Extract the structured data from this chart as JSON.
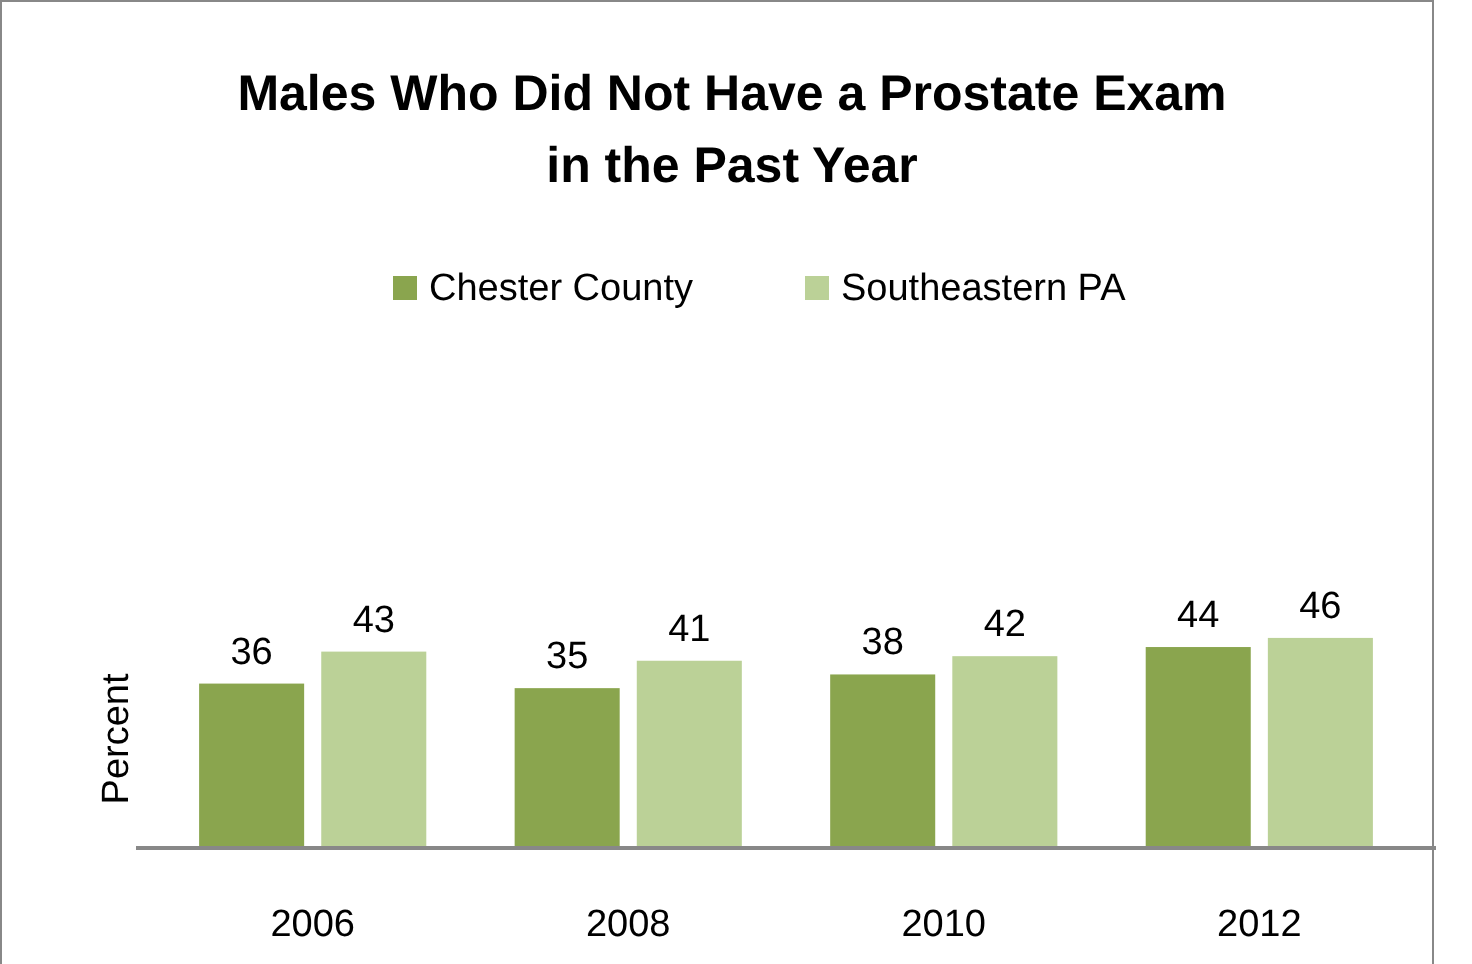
{
  "chart_data": {
    "type": "bar",
    "title": "Males Who Did Not Have a Prostate Exam\nin the Past Year",
    "ylabel": "Percent",
    "categories": [
      "2006",
      "2008",
      "2010",
      "2012"
    ],
    "series": [
      {
        "name": "Chester County",
        "color": "#8aa54e",
        "values": [
          36,
          35,
          38,
          44
        ]
      },
      {
        "name": "Southeastern PA",
        "color": "#bbd197",
        "values": [
          43,
          41,
          42,
          46
        ]
      }
    ],
    "data_labels": true,
    "legend": "top"
  }
}
